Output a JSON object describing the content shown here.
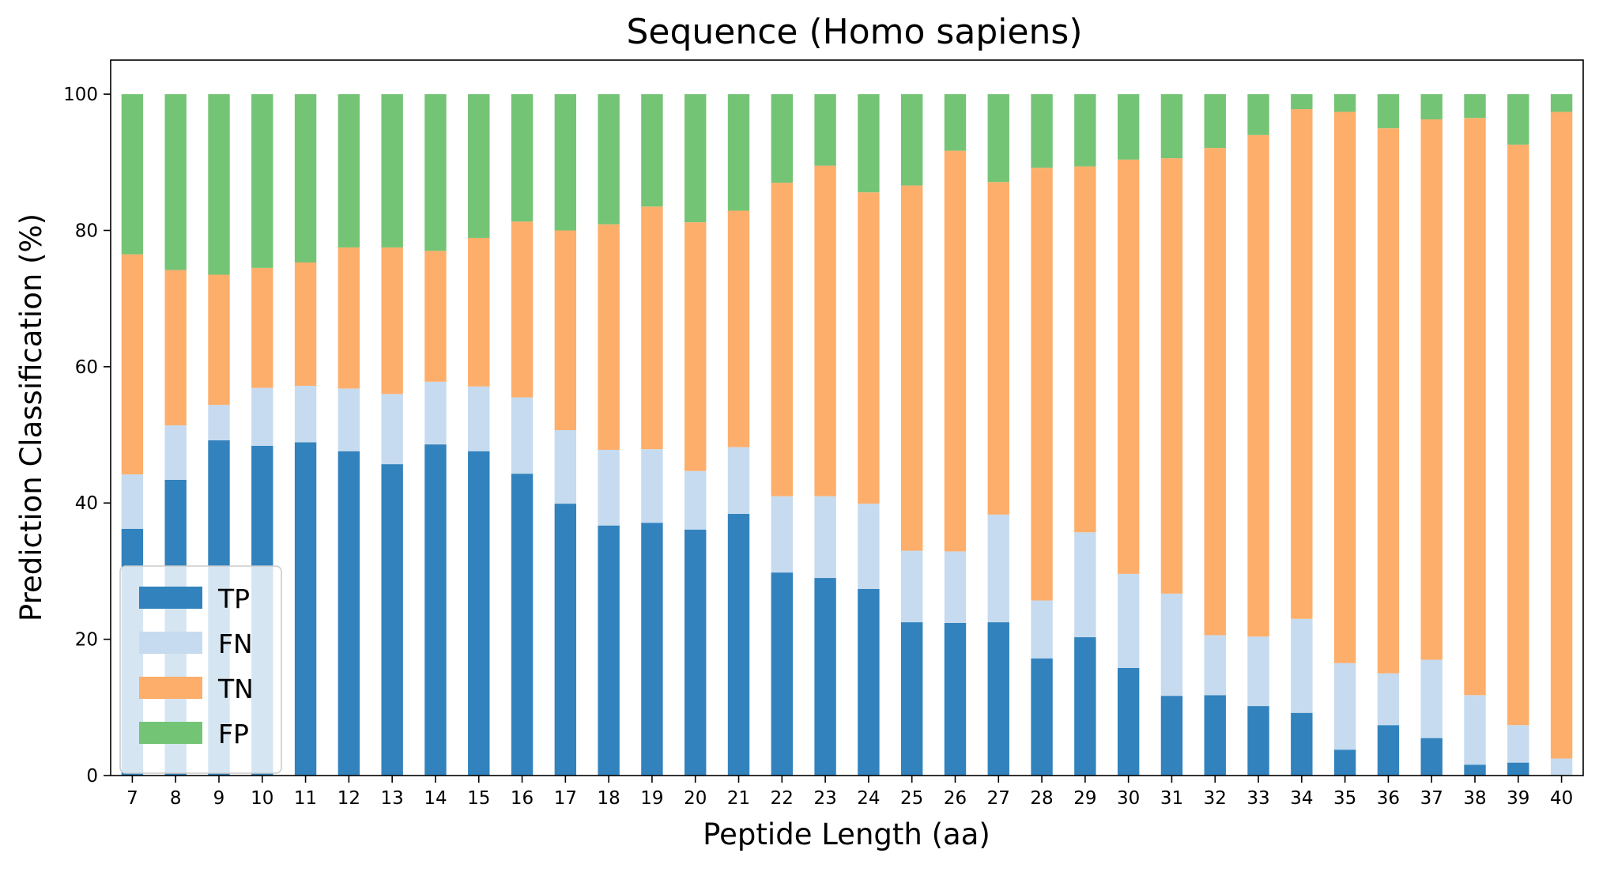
{
  "chart_data": {
    "type": "bar",
    "stacked": true,
    "title": "Sequence (Homo sapiens)",
    "xlabel": "Peptide Length (aa)",
    "ylabel": "Prediction Classification (%)",
    "ylim": [
      0,
      105
    ],
    "yticks": [
      0,
      20,
      40,
      60,
      80,
      100
    ],
    "grid": false,
    "legend_position": "bottom-left",
    "categories": [
      "7",
      "8",
      "9",
      "10",
      "11",
      "12",
      "13",
      "14",
      "15",
      "16",
      "17",
      "18",
      "19",
      "20",
      "21",
      "22",
      "23",
      "24",
      "25",
      "26",
      "27",
      "28",
      "29",
      "30",
      "31",
      "32",
      "33",
      "34",
      "35",
      "36",
      "37",
      "38",
      "39",
      "40"
    ],
    "series": [
      {
        "name": "TP",
        "color": "#3182bd",
        "values": [
          36.2,
          43.4,
          49.2,
          48.4,
          48.9,
          47.6,
          45.7,
          48.6,
          47.6,
          44.3,
          39.9,
          36.7,
          37.1,
          36.1,
          38.4,
          29.8,
          29.0,
          27.4,
          22.5,
          22.4,
          22.5,
          17.2,
          20.3,
          15.8,
          11.7,
          11.8,
          10.2,
          9.2,
          3.8,
          7.4,
          5.5,
          1.6,
          1.9,
          0.0
        ]
      },
      {
        "name": "FN",
        "color": "#c6dbef",
        "values": [
          8.0,
          8.0,
          5.2,
          8.5,
          8.3,
          9.2,
          10.3,
          9.2,
          9.5,
          11.2,
          10.8,
          11.1,
          10.8,
          8.6,
          9.8,
          11.2,
          12.0,
          12.5,
          10.5,
          10.5,
          15.8,
          8.5,
          15.4,
          13.8,
          15.0,
          8.8,
          10.2,
          13.8,
          12.7,
          7.6,
          11.5,
          10.2,
          5.5,
          2.5
        ]
      },
      {
        "name": "TN",
        "color": "#fdae6b",
        "values": [
          32.3,
          22.8,
          19.1,
          17.6,
          18.1,
          20.7,
          21.5,
          19.2,
          21.8,
          25.8,
          29.3,
          33.1,
          35.6,
          36.5,
          34.7,
          46.0,
          48.5,
          45.7,
          53.6,
          58.8,
          48.8,
          63.5,
          53.7,
          60.8,
          63.9,
          71.5,
          73.6,
          74.8,
          80.9,
          80.0,
          79.3,
          84.7,
          85.2,
          94.9
        ]
      },
      {
        "name": "FP",
        "color": "#74c476",
        "values": [
          23.5,
          25.8,
          26.5,
          25.5,
          24.7,
          22.5,
          22.5,
          23.0,
          21.1,
          18.7,
          20.0,
          19.1,
          16.5,
          18.8,
          17.1,
          13.0,
          10.5,
          14.4,
          13.4,
          8.3,
          12.9,
          10.8,
          10.6,
          9.6,
          9.4,
          7.9,
          6.0,
          2.2,
          2.6,
          5.0,
          3.7,
          3.5,
          7.4,
          2.6
        ]
      }
    ]
  }
}
